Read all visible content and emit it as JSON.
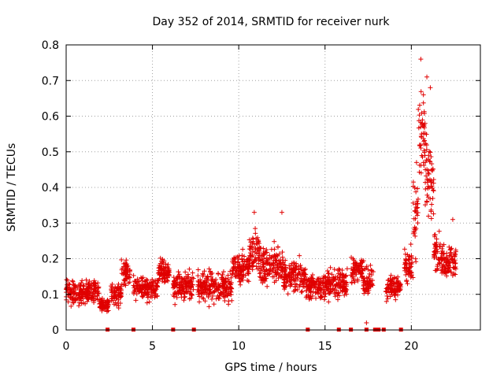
{
  "chart_data": {
    "type": "scatter",
    "title": "Day 352 of 2014, SRMTID for receiver nurk",
    "xlabel": "GPS time / hours",
    "ylabel": "SRMTID / TECUs",
    "xlim": [
      0,
      24
    ],
    "ylim": [
      0,
      0.8
    ],
    "xticks": [
      0,
      5,
      10,
      15,
      20
    ],
    "xtick_labels": [
      "0",
      "5",
      "10",
      "15",
      "20"
    ],
    "yticks": [
      0,
      0.1,
      0.2,
      0.3,
      0.4,
      0.5,
      0.6,
      0.7,
      0.8
    ],
    "ytick_labels": [
      "0",
      "0.1",
      "0.2",
      "0.3",
      "0.4",
      "0.5",
      "0.6",
      "0.7",
      "0.8"
    ],
    "grid": true,
    "marker": "+",
    "color": "#e00000",
    "series": [
      {
        "name": "SRMTID",
        "segments": [
          {
            "x_start": 0.0,
            "x_end": 1.9,
            "mean": 0.105,
            "spread": 0.035
          },
          {
            "x_start": 1.9,
            "x_end": 2.5,
            "mean": 0.07,
            "spread": 0.02
          },
          {
            "x_start": 2.6,
            "x_end": 3.2,
            "mean": 0.1,
            "spread": 0.03
          },
          {
            "x_start": 3.2,
            "x_end": 3.7,
            "mean": 0.16,
            "spread": 0.035
          },
          {
            "x_start": 3.9,
            "x_end": 4.6,
            "mean": 0.12,
            "spread": 0.03
          },
          {
            "x_start": 4.6,
            "x_end": 5.3,
            "mean": 0.115,
            "spread": 0.035
          },
          {
            "x_start": 5.3,
            "x_end": 6.0,
            "mean": 0.16,
            "spread": 0.035
          },
          {
            "x_start": 6.2,
            "x_end": 7.4,
            "mean": 0.125,
            "spread": 0.04
          },
          {
            "x_start": 7.6,
            "x_end": 9.6,
            "mean": 0.12,
            "spread": 0.045
          },
          {
            "x_start": 9.6,
            "x_end": 10.6,
            "mean": 0.17,
            "spread": 0.045
          },
          {
            "x_start": 10.6,
            "x_end": 11.2,
            "mean": 0.22,
            "spread": 0.06
          },
          {
            "x_start": 11.2,
            "x_end": 12.6,
            "mean": 0.18,
            "spread": 0.05
          },
          {
            "x_start": 12.6,
            "x_end": 13.9,
            "mean": 0.15,
            "spread": 0.045
          },
          {
            "x_start": 13.9,
            "x_end": 15.0,
            "mean": 0.12,
            "spread": 0.04
          },
          {
            "x_start": 15.0,
            "x_end": 16.3,
            "mean": 0.13,
            "spread": 0.04
          },
          {
            "x_start": 16.5,
            "x_end": 17.2,
            "mean": 0.17,
            "spread": 0.035
          },
          {
            "x_start": 17.2,
            "x_end": 17.8,
            "mean": 0.14,
            "spread": 0.04
          },
          {
            "x_start": 18.5,
            "x_end": 19.4,
            "mean": 0.12,
            "spread": 0.035
          },
          {
            "x_start": 19.6,
            "x_end": 20.1,
            "mean": 0.17,
            "spread": 0.05
          },
          {
            "x_start": 20.1,
            "x_end": 20.4,
            "mean": 0.32,
            "spread": 0.11
          },
          {
            "x_start": 20.4,
            "x_end": 20.8,
            "mean": 0.55,
            "spread": 0.12
          },
          {
            "x_start": 20.8,
            "x_end": 21.3,
            "mean": 0.42,
            "spread": 0.12
          },
          {
            "x_start": 21.3,
            "x_end": 21.7,
            "mean": 0.22,
            "spread": 0.06
          },
          {
            "x_start": 21.7,
            "x_end": 22.6,
            "mean": 0.19,
            "spread": 0.05
          }
        ],
        "peaks": [
          {
            "x": 20.55,
            "y": 0.76
          },
          {
            "x": 20.9,
            "y": 0.71
          },
          {
            "x": 21.1,
            "y": 0.68
          },
          {
            "x": 20.7,
            "y": 0.66
          },
          {
            "x": 20.3,
            "y": 0.47
          },
          {
            "x": 21.0,
            "y": 0.49
          },
          {
            "x": 10.9,
            "y": 0.33
          },
          {
            "x": 12.5,
            "y": 0.33
          },
          {
            "x": 22.4,
            "y": 0.31
          },
          {
            "x": 17.4,
            "y": 0.02
          }
        ],
        "zero_values_x": [
          2.4,
          3.9,
          6.2,
          7.4,
          14.0,
          15.8,
          16.5,
          17.4,
          17.9,
          18.1,
          18.4,
          19.4
        ]
      }
    ]
  }
}
